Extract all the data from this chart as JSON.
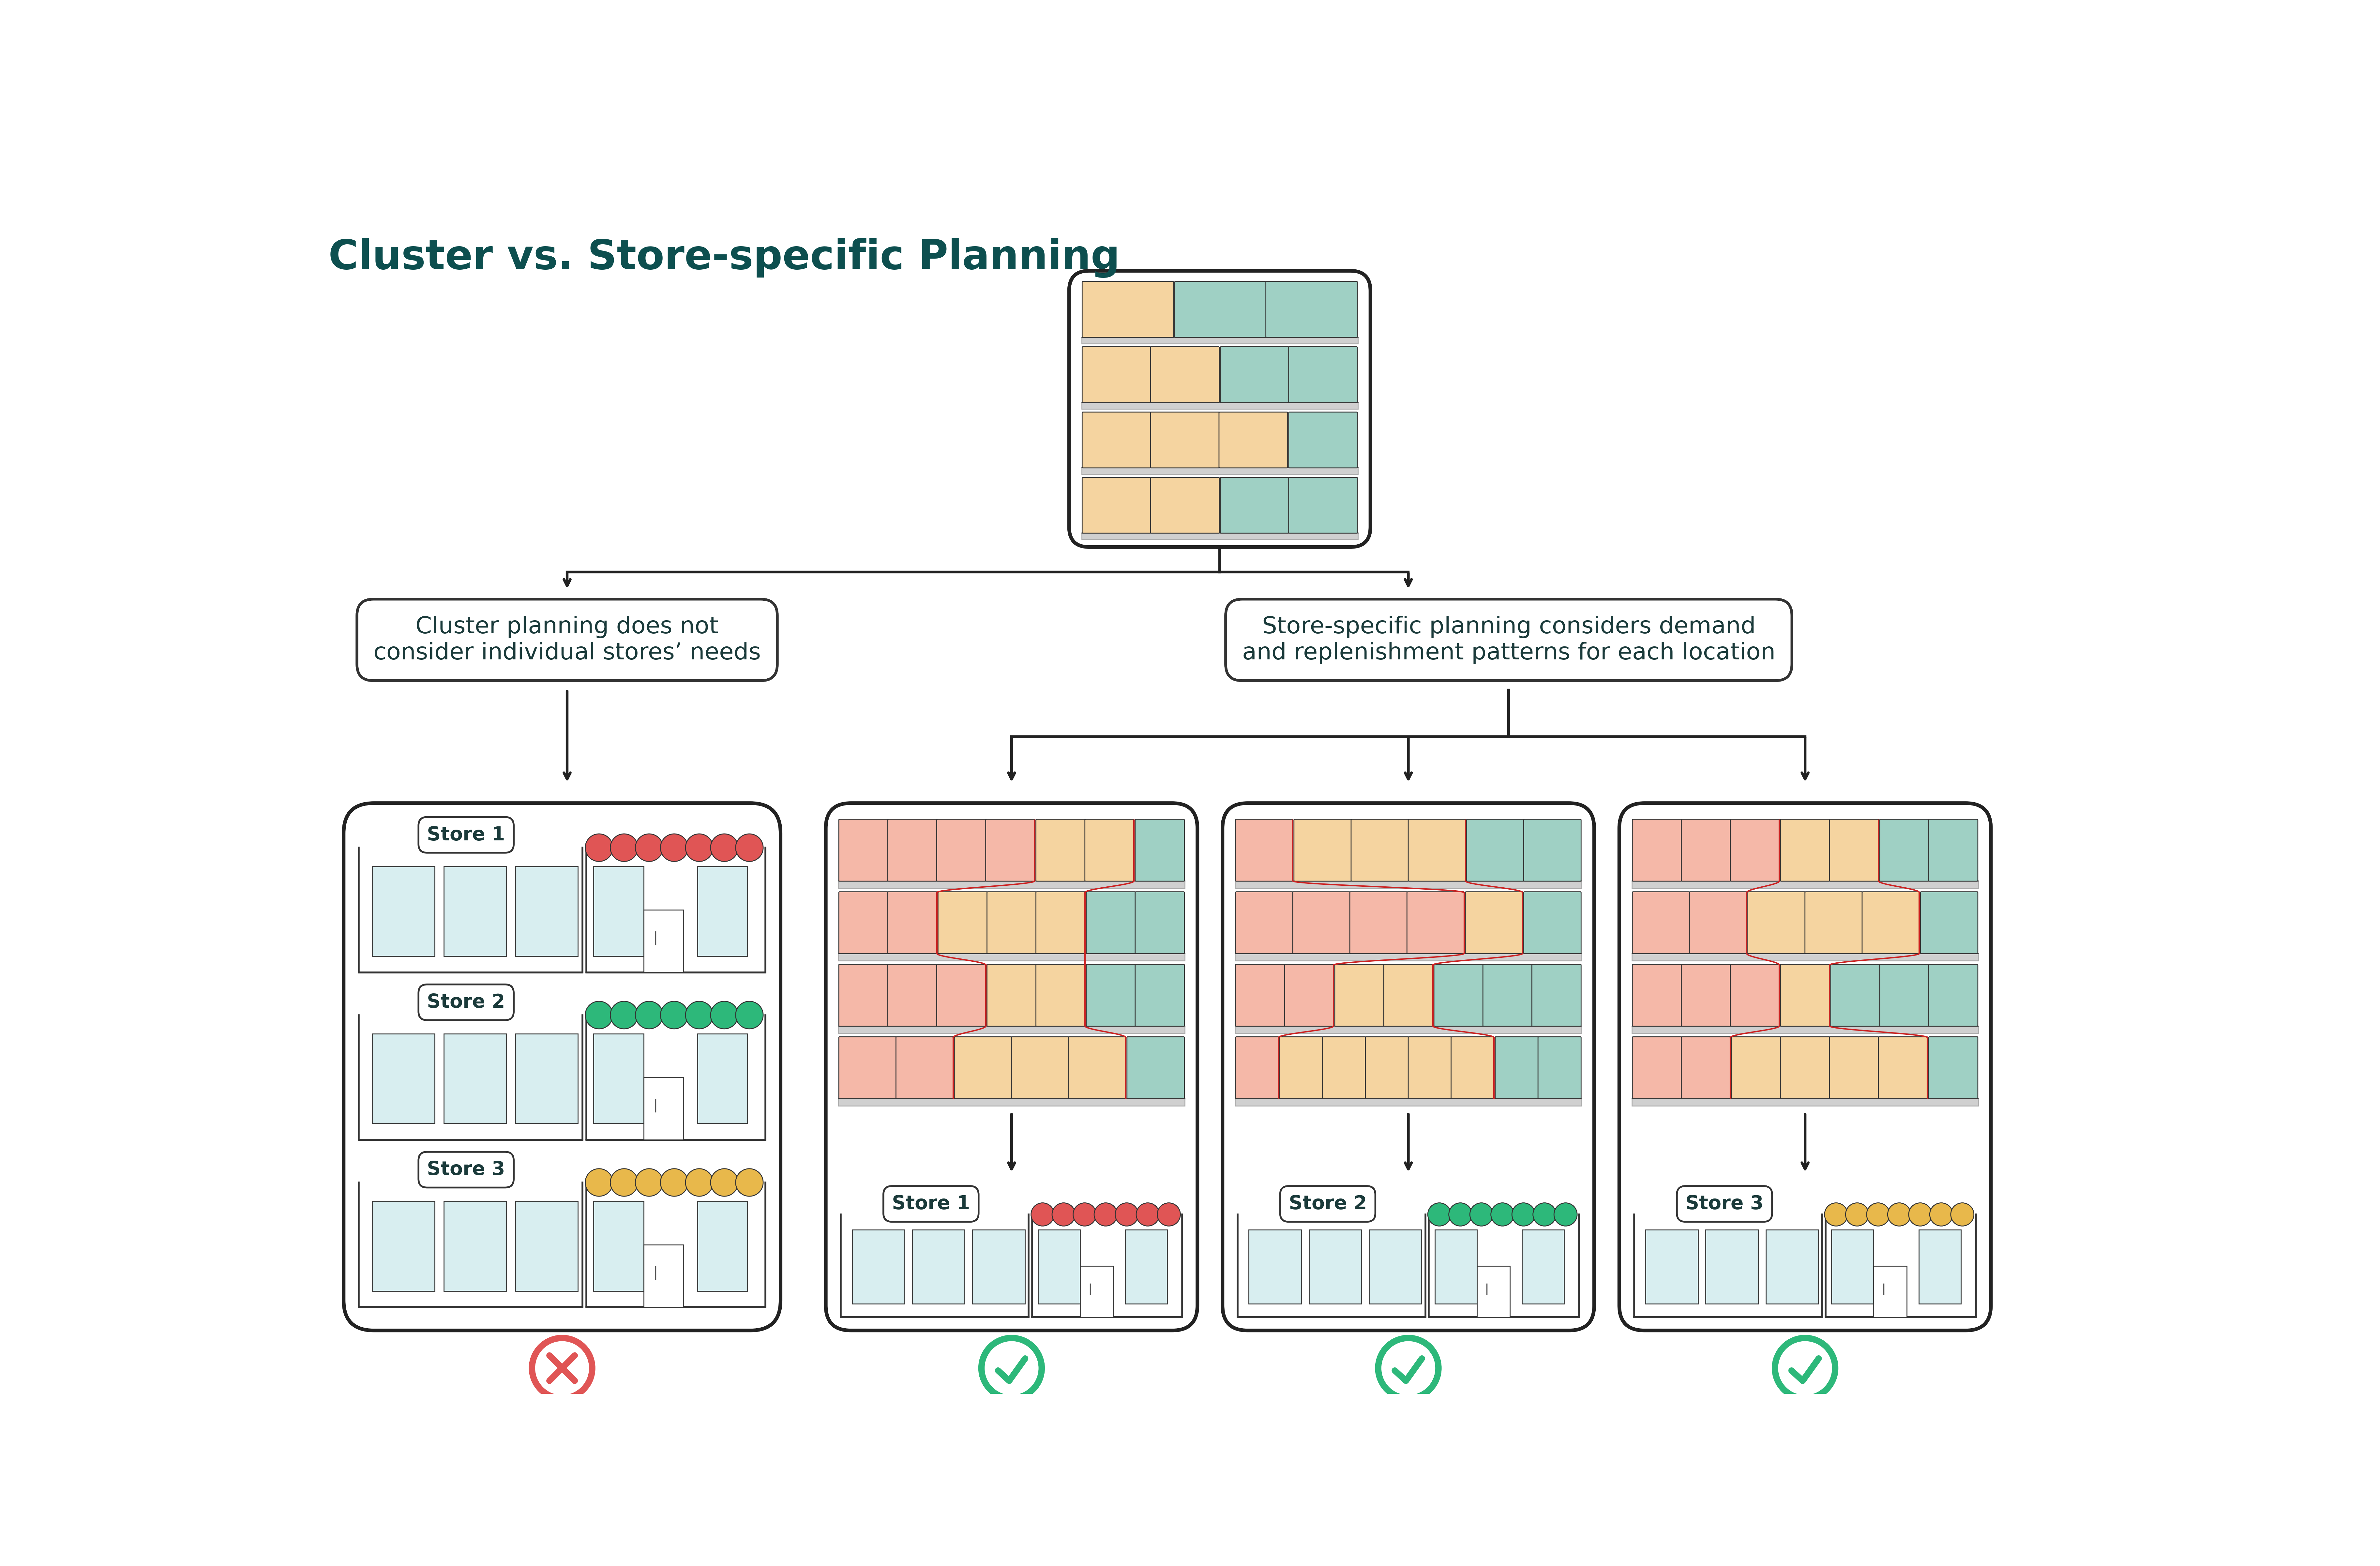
{
  "title": "Cluster vs. Store-specific Planning",
  "title_color": "#0d4f4f",
  "title_fontsize": 90,
  "bg_color": "#ffffff",
  "text_color": "#1a3a3a",
  "arrow_color": "#222222",
  "cluster_label": "Cluster planning does not\nconsider individual stores’ needs",
  "store_specific_label": "Store-specific planning considers demand\nand replenishment patterns for each location",
  "store_names": [
    "Store 1",
    "Store 2",
    "Store 3"
  ],
  "store_colors": [
    "#e05555",
    "#2db87a",
    "#e8b84b"
  ],
  "col_pink": "#f5b8a8",
  "col_peach": "#f5d4a0",
  "col_teal": "#9fd0c4",
  "check_color": "#2db87a",
  "cross_color": "#e05555",
  "shelf_color": "#d0d0d0",
  "shelf_edge": "#aaaaaa",
  "product_edge": "#333333",
  "box_edge": "#222222",
  "label_fontsize": 52,
  "store_name_fontsize": 48
}
